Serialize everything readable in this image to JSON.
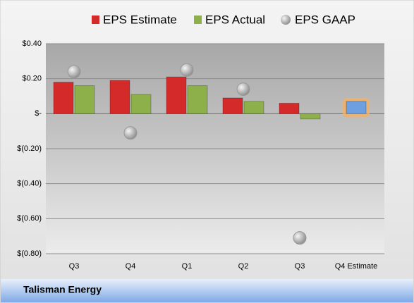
{
  "company": "Talisman Energy",
  "chart_data": {
    "type": "bar",
    "categories": [
      "Q3",
      "Q4",
      "Q1",
      "Q2",
      "Q3",
      "Q4 Estimate"
    ],
    "series": [
      {
        "name": "EPS Estimate",
        "color": "#d42a2a",
        "values": [
          0.18,
          0.19,
          0.21,
          0.09,
          0.06,
          0.07
        ]
      },
      {
        "name": "EPS Actual",
        "color": "#8db04a",
        "values": [
          0.16,
          0.11,
          0.16,
          0.07,
          -0.03,
          null
        ]
      },
      {
        "name": "EPS GAAP",
        "color": "#b0b0b0",
        "type": "scatter",
        "values": [
          0.24,
          -0.11,
          0.25,
          0.14,
          -0.71,
          null
        ]
      }
    ],
    "forecast_color": "#6e9fe0",
    "ylim": [
      -0.8,
      0.4
    ],
    "yticks": [
      {
        "value": 0.4,
        "label": "$0.40"
      },
      {
        "value": 0.2,
        "label": "$0.20"
      },
      {
        "value": 0,
        "label": "$-"
      },
      {
        "value": -0.2,
        "label": "$(0.20)"
      },
      {
        "value": -0.4,
        "label": "$(0.40)"
      },
      {
        "value": -0.6,
        "label": "$(0.60)"
      },
      {
        "value": -0.8,
        "label": "$(0.80)"
      }
    ],
    "grid": true
  }
}
